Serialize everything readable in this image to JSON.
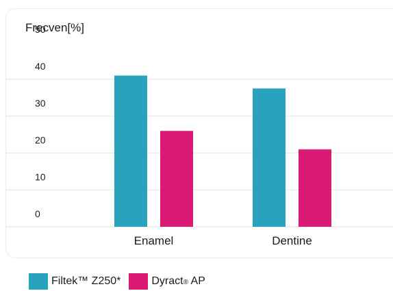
{
  "chart_data": {
    "type": "bar",
    "ylabel": "Frecven[%]",
    "categories": [
      "Enamel",
      "Dentine"
    ],
    "yticks": [
      0,
      10,
      20,
      30,
      40,
      50
    ],
    "ylim": [
      0,
      50
    ],
    "grid": true,
    "legend_position": "bottom-left",
    "series": [
      {
        "name": "Filtek™ Z250*",
        "color": "#29A3BD",
        "values": [
          41,
          37.5
        ]
      },
      {
        "name": "Dyract® AP",
        "color": "#D91B75",
        "values": [
          26,
          21
        ]
      }
    ]
  },
  "legend": {
    "item1": "Filtek™ Z250*",
    "item2_main": "Dyract",
    "item2_reg": "®",
    "item2_suffix": " AP"
  }
}
